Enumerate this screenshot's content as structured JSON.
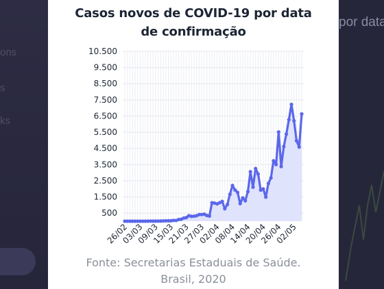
{
  "background": {
    "left_texts": [
      "ons",
      "s",
      "ks"
    ],
    "right_text": "por data"
  },
  "chart_data": {
    "type": "area",
    "title_lines": [
      "Casos novos de COVID-19 por data",
      "de confirmação"
    ],
    "source_lines": [
      "Fonte: Secretarias Estaduais de Saúde.",
      "Brasil, 2020"
    ],
    "x_tick_labels": [
      "26/02",
      "03/03",
      "09/03",
      "15/03",
      "21/03",
      "27/03",
      "02/04",
      "08/04",
      "14/04",
      "20/04",
      "26/04",
      "02/05"
    ],
    "y_ticks": [
      500,
      1500,
      2500,
      3500,
      4500,
      5500,
      6500,
      7500,
      8500,
      9500,
      10500
    ],
    "y_tick_labels": [
      "500",
      "1.500",
      "2.500",
      "3.500",
      "4.500",
      "5.500",
      "6.500",
      "7.500",
      "8.500",
      "9.500",
      "10.500"
    ],
    "ylim": [
      0,
      10500
    ],
    "grid": true,
    "series": [
      {
        "color": "#5b67ea",
        "fill": "#dfe3fc",
        "x": [
          "26/02",
          "27/02",
          "28/02",
          "29/02",
          "01/03",
          "02/03",
          "03/03",
          "04/03",
          "05/03",
          "06/03",
          "07/03",
          "08/03",
          "09/03",
          "10/03",
          "11/03",
          "12/03",
          "13/03",
          "14/03",
          "15/03",
          "16/03",
          "17/03",
          "18/03",
          "19/03",
          "20/03",
          "21/03",
          "22/03",
          "23/03",
          "24/03",
          "25/03",
          "26/03",
          "27/03",
          "28/03",
          "29/03",
          "30/03",
          "31/03",
          "01/04",
          "02/04",
          "03/04",
          "04/04",
          "05/04",
          "06/04",
          "07/04",
          "08/04",
          "09/04",
          "10/04",
          "11/04",
          "12/04",
          "13/04",
          "14/04",
          "15/04",
          "16/04",
          "17/04",
          "18/04",
          "19/04",
          "20/04",
          "21/04",
          "22/04",
          "23/04",
          "24/04",
          "25/04",
          "26/04",
          "27/04",
          "28/04",
          "29/04",
          "30/04",
          "01/05",
          "02/05",
          "03/05",
          "04/05",
          "05/05"
        ],
        "values": [
          1,
          0,
          0,
          0,
          1,
          0,
          0,
          1,
          0,
          5,
          7,
          5,
          5,
          9,
          9,
          18,
          23,
          26,
          26,
          50,
          45,
          103,
          121,
          194,
          228,
          338,
          302,
          309,
          342,
          411,
          416,
          434,
          353,
          323,
          1138,
          1119,
          1074,
          1146,
          1222,
          770,
          1031,
          1661,
          2210,
          1930,
          1781,
          1089,
          1442,
          1261,
          1832,
          3058,
          2105,
          3257,
          2917,
          1927,
          1996,
          1492,
          2336,
          2678,
          3735,
          3503,
          5514,
          3379,
          4613,
          5385,
          6276,
          7218,
          6209,
          4970,
          4588,
          6633
        ]
      }
    ]
  }
}
